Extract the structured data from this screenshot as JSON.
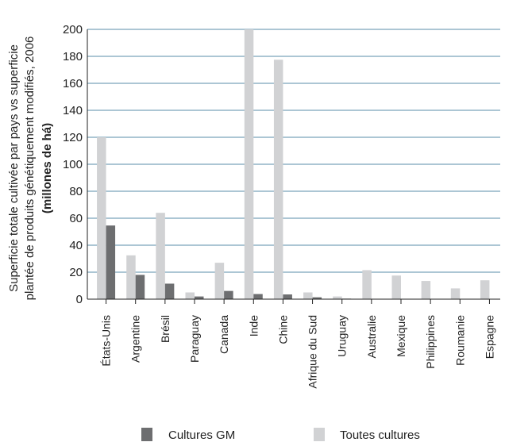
{
  "chart_data": {
    "type": "bar",
    "ylabel_lines": [
      "Superficie totale cultivée par pays vs superficie",
      "plantée de produits génétiquement modifiés, 2006",
      "(millones de há)"
    ],
    "ylim": [
      0,
      200
    ],
    "yticks": [
      0,
      20,
      40,
      60,
      80,
      100,
      120,
      140,
      160,
      180,
      200
    ],
    "grid": true,
    "legend_position": "bottom",
    "categories": [
      "États-Unis",
      "Argentine",
      "Brésil",
      "Paraguay",
      "Canada",
      "Inde",
      "Chine",
      "Afrique du Sud",
      "Uruguay",
      "Australie",
      "Mexique",
      "Philippines",
      "Roumanie",
      "Espagne"
    ],
    "series": [
      {
        "name": "Cultures GM",
        "color": "#6d6e70",
        "values": [
          54.6,
          18,
          11.5,
          2,
          6.1,
          3.8,
          3.5,
          1.4,
          0.4,
          0.2,
          0.1,
          0.2,
          0.1,
          0.1
        ]
      },
      {
        "name": "Toutes cultures",
        "color": "#d1d2d4",
        "values": [
          120,
          32.5,
          64,
          5,
          27,
          200,
          177.5,
          5,
          2,
          21.5,
          17.5,
          13.5,
          8,
          14
        ]
      }
    ]
  }
}
